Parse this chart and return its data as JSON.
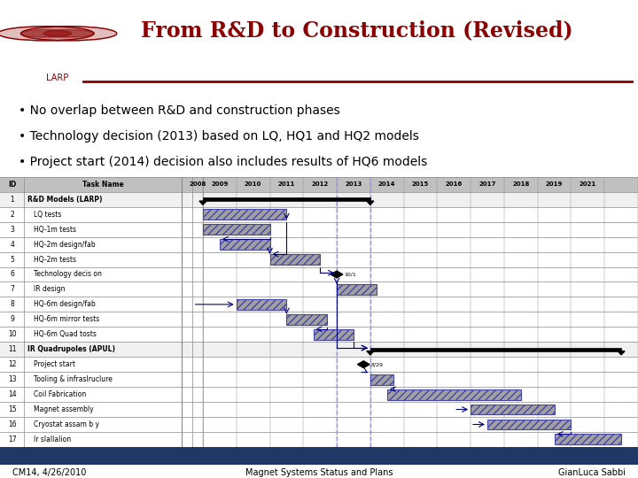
{
  "title": "From R&D to Construction (Revised)",
  "title_color": "#8B0000",
  "logo_text": "LARP",
  "bullets": [
    "No overlap between R&D and construction phases",
    "Technology decision (2013) based on LQ, HQ1 and HQ2 models",
    "Project start (2014) decision also includes results of HQ6 models"
  ],
  "footer_left": "CM14, 4/26/2010",
  "footer_center": "Magnet Systems Status and Plans",
  "footer_right": "GianLuca Sabbi",
  "footer_bar_color": "#1F3864",
  "task_ids": [
    "ID",
    "1",
    "2",
    "3",
    "4",
    "5",
    "6",
    "7",
    "8",
    "9",
    "10",
    "11",
    "12",
    "13",
    "14",
    "15",
    "16",
    "17"
  ],
  "task_names": [
    "Task Name",
    "R&D Models (LARP)",
    "LQ tests",
    "HQ-1m tests",
    "HQ-2m design/fab",
    "HQ-2m tests",
    "Technology decis on",
    "IR design",
    "HQ-6m design/fab",
    "HQ-6m mirror tests",
    "HQ-6m Quad tosts",
    "IR Quadrupoles (APUL)",
    "Project start",
    "Tooling & infraslruclure",
    "Coil Fabrication",
    "Magnet assembly",
    "Cryostat assam b y",
    "Ir slallalion"
  ],
  "task_bold": [
    true,
    true,
    false,
    false,
    false,
    false,
    false,
    false,
    false,
    false,
    false,
    true,
    false,
    false,
    false,
    false,
    false,
    false
  ],
  "year_labels": [
    "2008",
    "2009",
    "2010",
    "2011",
    "2012",
    "2013",
    "2014",
    "2015",
    "2016",
    "2017",
    "2018",
    "2019",
    "2021"
  ],
  "bg_color": "#FFFFFF",
  "header_bg": "#C0C0C0",
  "row_alt_bg": "#E8E8E8",
  "bar_fill": "#A0A0A0",
  "bar_hatch_color": "#606060",
  "bar_border": "#4444AA",
  "summary_color": "#000000",
  "arrow_color": "#000080",
  "milestone_color": "#000000",
  "dashed_line_color": "#9999CC",
  "grid_line_color": "#888888"
}
